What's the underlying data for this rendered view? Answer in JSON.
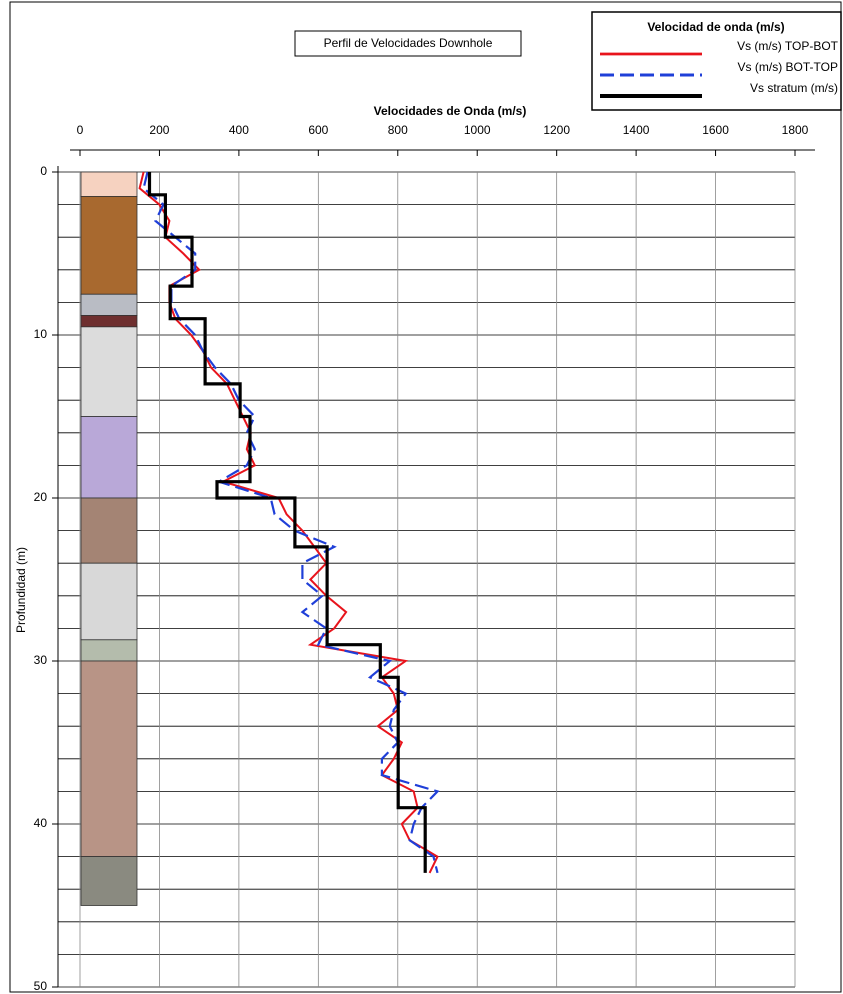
{
  "chart_data": {
    "type": "depth-profile",
    "title": "Perfil de Velocidades Downhole",
    "x_label": "Velocidades de Onda (m/s)",
    "y_label": "Profundidad (m)",
    "xlim": [
      0,
      1800
    ],
    "xticks": [
      0,
      200,
      400,
      600,
      800,
      1000,
      1200,
      1400,
      1600,
      1800
    ],
    "ylim": [
      0,
      50
    ],
    "yticks": [
      0,
      10,
      20,
      30,
      40,
      50
    ],
    "y_inverted": true,
    "y_gridlines": [
      0,
      2,
      4,
      6,
      8,
      10,
      12,
      14,
      16,
      18,
      20,
      22,
      24,
      26,
      28,
      30,
      32,
      34,
      36,
      38,
      40,
      42,
      44,
      46,
      48,
      50
    ],
    "grid": true,
    "legend_title": "Velocidad de onda (m/s)",
    "legend_position": "top-right",
    "series": [
      {
        "name": "Vs (m/s) TOP-BOT",
        "color": "#e8141c",
        "style": "solid",
        "depth": [
          0,
          1,
          2,
          3,
          4,
          5,
          6,
          7,
          8,
          9,
          10,
          11,
          12,
          13,
          14,
          15,
          16,
          17,
          18,
          19,
          20,
          21,
          22,
          23,
          24,
          25,
          26,
          27,
          28,
          29,
          30,
          31,
          32,
          33,
          34,
          35,
          36,
          37,
          38,
          39,
          40,
          41,
          42,
          43
        ],
        "values": [
          160,
          150,
          200,
          225,
          215,
          260,
          300,
          225,
          225,
          240,
          280,
          310,
          330,
          370,
          390,
          410,
          430,
          420,
          440,
          360,
          500,
          520,
          560,
          590,
          620,
          580,
          620,
          670,
          640,
          580,
          820,
          760,
          790,
          800,
          750,
          810,
          790,
          760,
          840,
          850,
          810,
          830,
          900,
          880
        ]
      },
      {
        "name": "Vs (m/s) BOT-TOP",
        "color": "#1f3fd8",
        "style": "dashed",
        "depth": [
          0,
          1,
          2,
          3,
          4,
          5,
          6,
          7,
          8,
          9,
          10,
          11,
          12,
          13,
          14,
          15,
          16,
          17,
          18,
          19,
          20,
          21,
          22,
          23,
          24,
          25,
          26,
          27,
          28,
          29,
          30,
          31,
          32,
          33,
          34,
          35,
          36,
          37,
          38,
          39,
          40,
          41,
          42,
          43
        ],
        "values": [
          170,
          160,
          210,
          190,
          240,
          290,
          290,
          230,
          230,
          250,
          290,
          310,
          340,
          380,
          400,
          440,
          420,
          440,
          420,
          350,
          480,
          490,
          540,
          640,
          560,
          560,
          610,
          560,
          620,
          600,
          780,
          730,
          820,
          790,
          780,
          800,
          760,
          760,
          900,
          860,
          840,
          830,
          890,
          900
        ]
      },
      {
        "name": "Vs stratum (m/s)",
        "color": "#000000",
        "style": "thick",
        "depth": [
          0,
          1.4,
          1.4,
          4,
          4,
          7,
          7,
          9,
          9,
          13,
          13,
          15,
          15,
          19,
          19,
          20,
          20,
          23,
          23,
          29,
          29,
          31,
          31,
          39,
          39,
          43
        ],
        "values": [
          175,
          175,
          215,
          215,
          282,
          282,
          227,
          227,
          315,
          315,
          403,
          403,
          428,
          428,
          345,
          345,
          541,
          541,
          622,
          622,
          756,
          756,
          801,
          801,
          869,
          869
        ]
      }
    ],
    "lithology": [
      {
        "top": 0,
        "bottom": 1.5,
        "color": "#f6d2c0"
      },
      {
        "top": 1.5,
        "bottom": 7.5,
        "color": "#a8692f"
      },
      {
        "top": 7.5,
        "bottom": 8.8,
        "color": "#b9bcc4"
      },
      {
        "top": 8.8,
        "bottom": 9.5,
        "color": "#6e2f2f"
      },
      {
        "top": 9.5,
        "bottom": 15,
        "color": "#dcdcdc"
      },
      {
        "top": 15,
        "bottom": 20,
        "color": "#b9a8d8"
      },
      {
        "top": 20,
        "bottom": 24,
        "color": "#a48474"
      },
      {
        "top": 24,
        "bottom": 28.7,
        "color": "#d8d8d8"
      },
      {
        "top": 28.7,
        "bottom": 30,
        "color": "#b4bcac"
      },
      {
        "top": 30,
        "bottom": 42,
        "color": "#b89486"
      },
      {
        "top": 42,
        "bottom": 45,
        "color": "#8a8a80"
      }
    ]
  }
}
